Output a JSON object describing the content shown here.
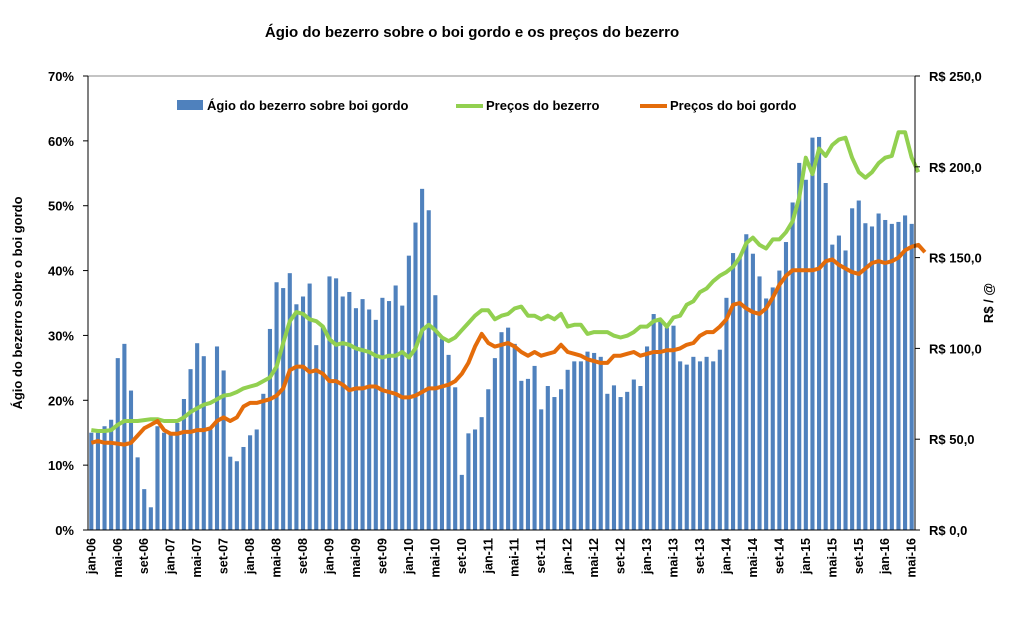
{
  "chart_data": {
    "type": "bar+line",
    "title": "Ágio do bezerro sobre o boi gordo e os preços do bezerro",
    "ylabel_left": "Ágio do bezerro sobre o boi gordo",
    "ylabel_right": "R$ / @",
    "ylim_left": [
      0,
      70
    ],
    "ylim_right": [
      0,
      250
    ],
    "left_ticks": [
      "0%",
      "10%",
      "20%",
      "30%",
      "40%",
      "50%",
      "60%",
      "70%"
    ],
    "right_ticks": [
      "R$ 0,0",
      "R$ 50,0",
      "R$ 100,0",
      "R$ 150,0",
      "R$ 200,0",
      "R$ 250,0"
    ],
    "x_tick_labels": [
      "jan-06",
      "mai-06",
      "set-06",
      "jan-07",
      "mai-07",
      "set-07",
      "jan-08",
      "mai-08",
      "set-08",
      "jan-09",
      "mai-09",
      "set-09",
      "jan-10",
      "mai-10",
      "set-10",
      "jan-11",
      "mai-11",
      "set-11",
      "jan-12",
      "mai-12",
      "set-12",
      "jan-13",
      "mai-13",
      "set-13",
      "jan-14",
      "mai-14",
      "set-14",
      "jan-15",
      "mai-15",
      "set-15",
      "jan-16",
      "mai-16"
    ],
    "legend": [
      "Ágio do bezerro sobre boi gordo",
      "Preços do bezerro",
      "Preços do boi gordo"
    ],
    "legend_position": "top",
    "colors": {
      "bars": "#4f81bd",
      "bezerro": "#92d050",
      "boi": "#e46c0a"
    },
    "series": [
      {
        "name": "Ágio do bezerro sobre boi gordo",
        "axis": "left",
        "values": [
          15,
          15,
          16,
          17,
          26.5,
          28.7,
          21.5,
          11.2,
          6.3,
          3.5,
          16,
          15,
          15,
          16.5,
          20.2,
          24.8,
          28.8,
          26.8,
          15.5,
          28.3,
          24.6,
          11.3,
          10.6,
          12.8,
          14.6,
          15.5,
          21,
          31,
          38.2,
          37.3,
          39.6,
          34.8,
          36,
          38,
          28.5,
          31.4,
          39.1,
          38.8,
          36,
          36.7,
          34.2,
          35.6,
          34,
          32.4,
          35.8,
          35.3,
          37.7,
          34.6,
          42.3,
          47.4,
          52.6,
          49.3,
          36.2,
          29.5,
          27,
          22,
          8.5,
          14.9,
          15.5,
          17.4,
          21.7,
          26.5,
          30.5,
          31.2,
          28.7,
          23,
          23.3,
          25.3,
          18.6,
          22.2,
          20.5,
          21.7,
          24.7,
          26,
          26,
          27.5,
          27.3,
          26.7,
          21,
          22.3,
          20.5,
          21.3,
          23.2,
          22.2,
          28.3,
          33.3,
          32.2,
          31.2,
          31.5,
          26,
          25.5,
          26.7,
          26,
          26.7,
          26,
          27.8,
          35.8,
          42.7,
          42,
          45.6,
          42.6,
          39.1,
          35.7,
          37.4,
          40,
          44.4,
          50.5,
          56.6,
          54,
          60.5,
          60.6,
          53.5,
          44,
          45.4,
          43.1,
          49.6,
          50.8,
          47.3,
          46.8,
          48.8,
          47.8,
          47.2,
          47.5,
          48.5,
          47.2
        ]
      },
      {
        "name": "Preços do bezerro",
        "axis": "right",
        "values": [
          55,
          54.5,
          54.5,
          55,
          58,
          60,
          60,
          60,
          60.5,
          61,
          61,
          60,
          60,
          60,
          62,
          65,
          67,
          69,
          70,
          72,
          74,
          74.5,
          76,
          78,
          79,
          80,
          82,
          84,
          90,
          103,
          115,
          120,
          119,
          116,
          115,
          112,
          105,
          102,
          103,
          102,
          100,
          99,
          98,
          96,
          95,
          96,
          96,
          98,
          95,
          100,
          110,
          113,
          110,
          106,
          104,
          106,
          110,
          114,
          118,
          121,
          121,
          116,
          118,
          119,
          122,
          123,
          118,
          118,
          116,
          118,
          116,
          119,
          112,
          113,
          113,
          108,
          109,
          109,
          109,
          107,
          106,
          107,
          109,
          112,
          112,
          115,
          116,
          112,
          117,
          118,
          124,
          126,
          131,
          133,
          137,
          140,
          142,
          145,
          150,
          158,
          161,
          157,
          155,
          160,
          160,
          164,
          170,
          183,
          205,
          196,
          210,
          206,
          212,
          215,
          216,
          205,
          197,
          194,
          197,
          202,
          205,
          206,
          219,
          219,
          205,
          197
        ]
      },
      {
        "name": "Preços do boi gordo",
        "axis": "right",
        "values": [
          48,
          49,
          48,
          48,
          47.5,
          47,
          48,
          52,
          56,
          58,
          60,
          55,
          53,
          53,
          54,
          54,
          55,
          55,
          56,
          60,
          62,
          60,
          62,
          68,
          70,
          70,
          71,
          72,
          74,
          78,
          88,
          90,
          90,
          87,
          88,
          86,
          82,
          82,
          80,
          77,
          78,
          78,
          79,
          79,
          77,
          76,
          75,
          73,
          73,
          74,
          76,
          78,
          78,
          79,
          80,
          82,
          86,
          92,
          101,
          108,
          103,
          101,
          102,
          103,
          101,
          98,
          96,
          98,
          96,
          97,
          98,
          102,
          98,
          97,
          96,
          94,
          93,
          92,
          92,
          96,
          96,
          97,
          98,
          96,
          97,
          98,
          98,
          99,
          99,
          100,
          102,
          103,
          107,
          109,
          109,
          112,
          116,
          124,
          125,
          122,
          120,
          119,
          122,
          128,
          135,
          140,
          143,
          143,
          143,
          143,
          144,
          148,
          149,
          146,
          144,
          142,
          141,
          144,
          147,
          148,
          147,
          148,
          150,
          154,
          156,
          157,
          153
        ]
      }
    ]
  }
}
